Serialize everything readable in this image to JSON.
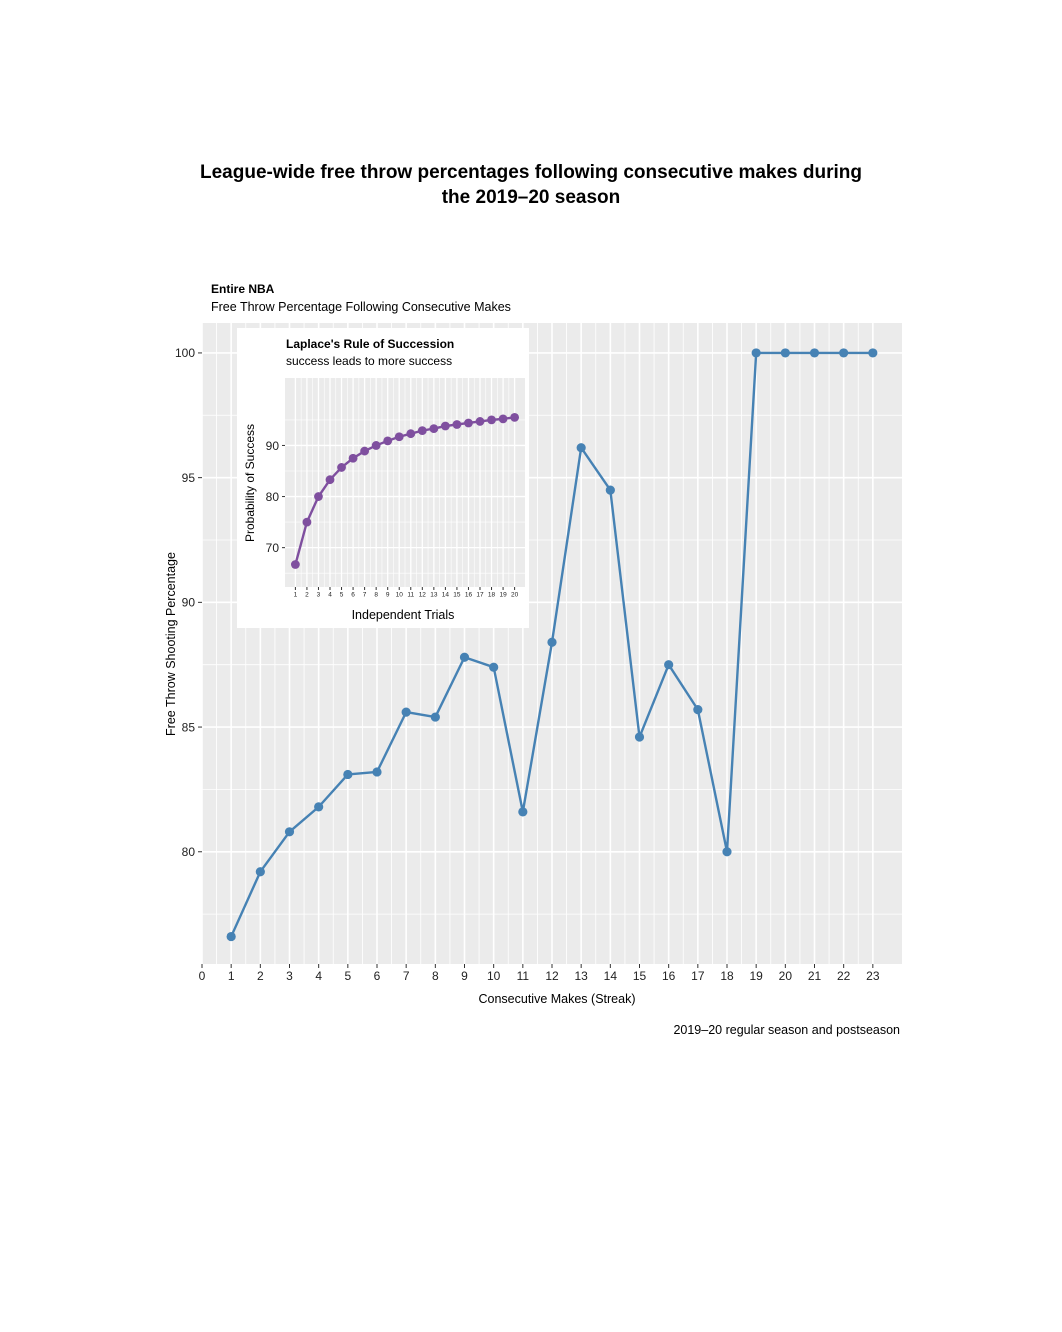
{
  "page": {
    "title_line1": "League-wide free throw percentages following consecutive makes during",
    "title_line2": "the 2019–20 season"
  },
  "chart_data": [
    {
      "type": "line",
      "title": "Entire NBA",
      "subtitle": "Free Throw Percentage Following Consecutive Makes",
      "xlabel": "Consecutive Makes (Streak)",
      "ylabel": "Free Throw Shooting Percentage",
      "caption": "2019–20 regular season and postseason",
      "x_ticks": [
        0,
        1,
        2,
        3,
        4,
        5,
        6,
        7,
        8,
        9,
        10,
        11,
        12,
        13,
        14,
        15,
        16,
        17,
        18,
        19,
        20,
        21,
        22,
        23
      ],
      "y_ticks": [
        80,
        85,
        90,
        95,
        100
      ],
      "xlim": [
        0,
        24
      ],
      "ylim": [
        75.5,
        101.2
      ],
      "grid": true,
      "color": "#4682b4",
      "x": [
        1,
        2,
        3,
        4,
        5,
        6,
        7,
        8,
        9,
        10,
        11,
        12,
        13,
        14,
        15,
        16,
        17,
        18,
        19,
        20,
        21,
        22,
        23
      ],
      "y": [
        76.6,
        79.2,
        80.8,
        81.8,
        83.1,
        83.2,
        85.6,
        85.4,
        87.8,
        87.4,
        81.6,
        88.4,
        96.2,
        94.5,
        84.6,
        87.5,
        85.7,
        80.0,
        100,
        100,
        100,
        100,
        100
      ]
    },
    {
      "type": "line",
      "title": "Laplace's Rule of Succession",
      "subtitle": "success leads to more success",
      "xlabel": "Independent Trials",
      "ylabel": "Probability of Success",
      "x_ticks": [
        1,
        2,
        3,
        4,
        5,
        6,
        7,
        8,
        9,
        10,
        11,
        12,
        13,
        14,
        15,
        16,
        17,
        18,
        19,
        20
      ],
      "y_ticks": [
        70,
        80,
        90
      ],
      "y_tick_labels": [
        "70",
        "80",
        "90"
      ],
      "xlim": [
        0.1,
        20.9
      ],
      "ylim": [
        62.3,
        103.2
      ],
      "grid": true,
      "color": "#7f4f9f",
      "x": [
        1,
        2,
        3,
        4,
        5,
        6,
        7,
        8,
        9,
        10,
        11,
        12,
        13,
        14,
        15,
        16,
        17,
        18,
        19,
        20
      ],
      "y": [
        66.7,
        75.0,
        80.0,
        83.3,
        85.7,
        87.5,
        88.9,
        90.0,
        90.9,
        91.7,
        92.3,
        92.9,
        93.3,
        93.8,
        94.1,
        94.4,
        94.7,
        95.0,
        95.2,
        95.5
      ]
    }
  ]
}
